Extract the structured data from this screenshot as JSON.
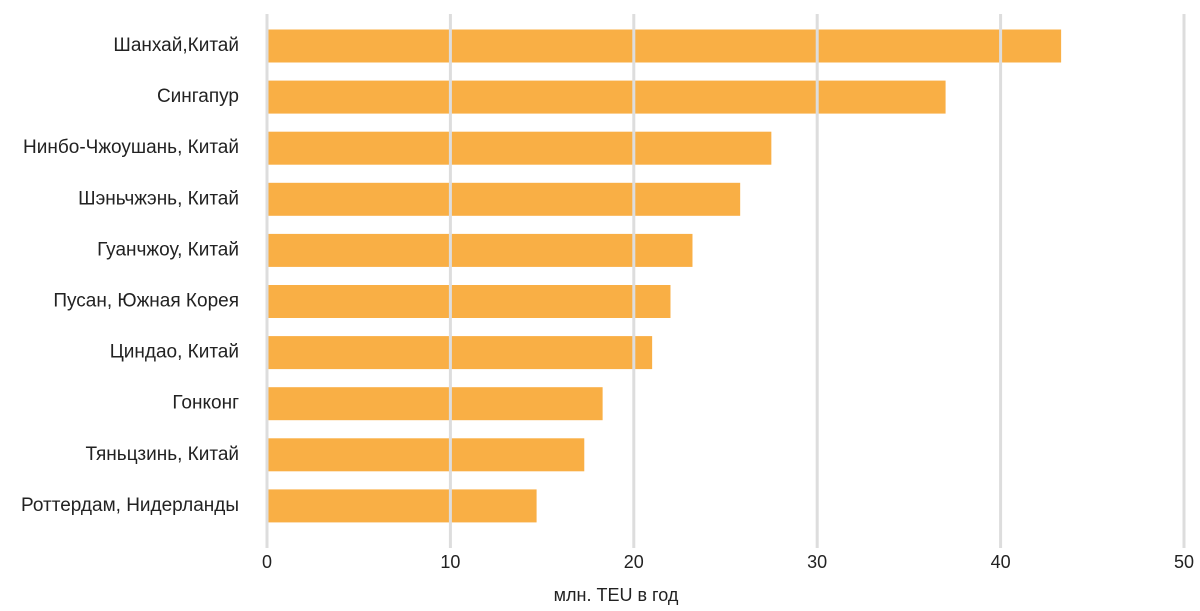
{
  "chart_data": {
    "type": "bar",
    "orientation": "horizontal",
    "categories": [
      "Шанхай,Китай",
      "Сингапур",
      "Нинбо-Чжоушань, Китай",
      "Шэньчжэнь, Китай",
      "Гуанчжоу, Китай",
      "Пусан, Южная Корея",
      "Циндао, Китай",
      "Гонконг",
      "Тяньцзинь, Китай",
      "Роттердам, Нидерланды"
    ],
    "values": [
      43.3,
      37.0,
      27.5,
      25.8,
      23.2,
      22.0,
      21.0,
      18.3,
      17.3,
      14.7
    ],
    "xlabel": "млн. TEU в год",
    "xlim": [
      0,
      50
    ],
    "xticks": [
      "0",
      "10",
      "20",
      "30",
      "40",
      "50"
    ],
    "grid": true,
    "bar_color": "#F9AF45",
    "grid_color": "#DDDDDD"
  }
}
